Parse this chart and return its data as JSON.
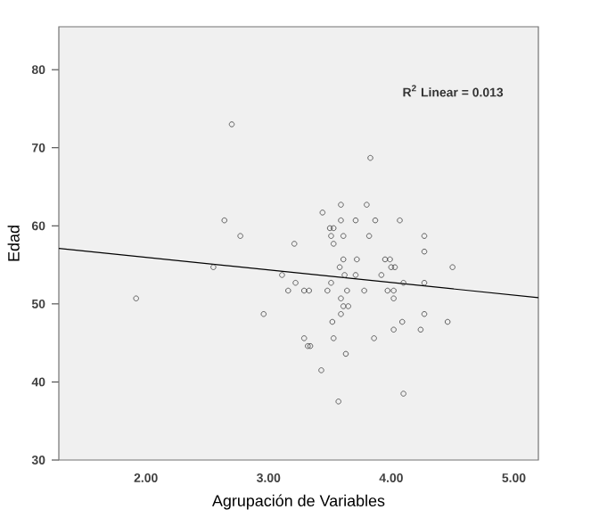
{
  "chart_data": {
    "type": "scatter",
    "xlabel": "Agrupación de Variables",
    "ylabel": "Edad",
    "annotations": [
      "R$^{2}$ Linear = 0.013"
    ],
    "xlim": [
      1.29,
      5.2
    ],
    "ylim": [
      30,
      85.5
    ],
    "xticks": [
      {
        "value": 2,
        "label": "2.00"
      },
      {
        "value": 3,
        "label": "3.00"
      },
      {
        "value": 4,
        "label": "4.00"
      },
      {
        "value": 5,
        "label": "5.00"
      }
    ],
    "yticks": [
      30,
      40,
      50,
      60,
      70,
      80
    ],
    "marker": "circle",
    "series": [
      {
        "color": "#404040",
        "x": [
          2.7,
          3.83,
          3.59,
          3.8,
          3.44,
          2.64,
          3.5,
          3.53,
          3.59,
          3.71,
          3.87,
          4.07,
          2.77,
          3.21,
          3.51,
          3.61,
          3.82,
          4.27,
          3.53,
          4.27,
          3.61,
          3.72,
          3.95,
          3.99,
          3.58,
          4.0,
          4.03,
          2.55,
          4.5,
          3.11,
          3.62,
          3.71,
          3.92,
          3.22,
          3.51,
          4.1,
          4.27,
          1.92,
          3.16,
          3.29,
          3.33,
          3.48,
          3.64,
          3.78,
          3.97,
          4.02,
          3.59,
          4.02,
          3.61,
          3.65,
          3.59,
          2.96,
          4.27,
          3.52,
          4.09,
          4.46,
          4.02,
          4.24,
          3.29,
          3.53,
          3.86,
          3.32,
          3.34,
          3.63,
          3.43,
          4.1,
          3.57
        ],
        "values": [
          73,
          68.7,
          62.7,
          62.7,
          61.7,
          60.7,
          59.7,
          59.7,
          60.7,
          60.7,
          60.7,
          60.7,
          58.7,
          57.7,
          58.7,
          58.7,
          58.7,
          58.7,
          57.7,
          56.7,
          55.7,
          55.7,
          55.7,
          55.7,
          54.7,
          54.7,
          54.7,
          54.7,
          54.7,
          53.7,
          53.7,
          53.7,
          53.7,
          52.7,
          52.7,
          52.7,
          52.7,
          50.7,
          51.7,
          51.7,
          51.7,
          51.7,
          51.7,
          51.7,
          51.7,
          51.7,
          50.7,
          50.7,
          49.7,
          49.7,
          48.7,
          48.7,
          48.7,
          47.7,
          47.7,
          47.7,
          46.7,
          46.7,
          45.6,
          45.6,
          45.6,
          44.6,
          44.6,
          43.6,
          41.5,
          38.5,
          37.5
        ]
      },
      {
        "type": "line",
        "color": "#000000",
        "marker": "none",
        "x": [
          1.29,
          5.2
        ],
        "values": [
          57.1,
          50.8
        ]
      }
    ]
  }
}
